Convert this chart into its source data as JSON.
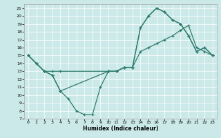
{
  "xlabel": "Humidex (Indice chaleur)",
  "background_color": "#cce9e9",
  "line_color": "#2e7b6e",
  "series": {
    "line1_straight": {
      "x": [
        0,
        1,
        2,
        3,
        4,
        10,
        11,
        12,
        13,
        14,
        15,
        16,
        17,
        18,
        19,
        20,
        21,
        22,
        23
      ],
      "y": [
        15,
        14,
        13,
        13,
        13,
        13,
        13,
        13.5,
        13.5,
        15.5,
        16,
        16.5,
        17,
        17.5,
        18.2,
        18.8,
        16,
        15.5,
        15
      ]
    },
    "line2_peak": {
      "x": [
        0,
        1,
        2,
        3,
        4,
        10,
        11,
        12,
        13,
        14,
        15,
        16,
        17,
        18,
        19,
        20,
        21,
        22,
        23
      ],
      "y": [
        15,
        14,
        13,
        12.5,
        10.5,
        13,
        13,
        13.5,
        13.5,
        18.5,
        20,
        21,
        20.5,
        19.5,
        19,
        17.5,
        15.5,
        16,
        15
      ]
    },
    "line3_dip": {
      "x": [
        0,
        1,
        2,
        3,
        4,
        5,
        6,
        7,
        8,
        9,
        10,
        11,
        12,
        13,
        14,
        15,
        16,
        17,
        18,
        19,
        20,
        21,
        22,
        23
      ],
      "y": [
        15,
        14,
        13,
        12.5,
        10.5,
        9.5,
        8,
        7.5,
        7.5,
        11,
        13,
        13,
        13.5,
        13.5,
        18.5,
        20,
        21,
        20.5,
        19.5,
        19,
        17.5,
        15.5,
        16,
        15
      ]
    }
  },
  "ylim": [
    7,
    21.5
  ],
  "xlim": [
    -0.5,
    23.5
  ],
  "yticks": [
    7,
    8,
    9,
    10,
    11,
    12,
    13,
    14,
    15,
    16,
    17,
    18,
    19,
    20,
    21
  ],
  "xticks": [
    0,
    1,
    2,
    3,
    4,
    5,
    6,
    7,
    8,
    9,
    10,
    11,
    12,
    13,
    14,
    15,
    16,
    17,
    18,
    19,
    20,
    21,
    22,
    23
  ]
}
